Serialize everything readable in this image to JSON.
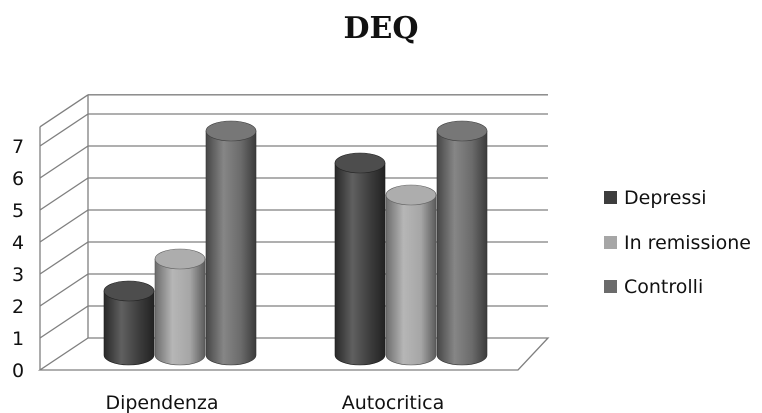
{
  "chart_data": {
    "type": "bar",
    "title": "DEQ",
    "xlabel": "",
    "ylabel": "",
    "categories": [
      "Dipendenza",
      "Autocritica"
    ],
    "series": [
      {
        "name": "Depressi",
        "values": [
          2,
          6
        ],
        "color": "#3d3d3d"
      },
      {
        "name": "In remissione",
        "values": [
          3,
          5
        ],
        "color": "#a6a6a6"
      },
      {
        "name": "Controlli",
        "values": [
          7,
          7
        ],
        "color": "#6b6b6b"
      }
    ],
    "ylim": [
      0,
      7
    ],
    "yticks": [
      "0",
      "1",
      "2",
      "3",
      "4",
      "5",
      "6",
      "7"
    ],
    "grid": true,
    "legend_position": "right",
    "style": "3d-cylinder"
  }
}
